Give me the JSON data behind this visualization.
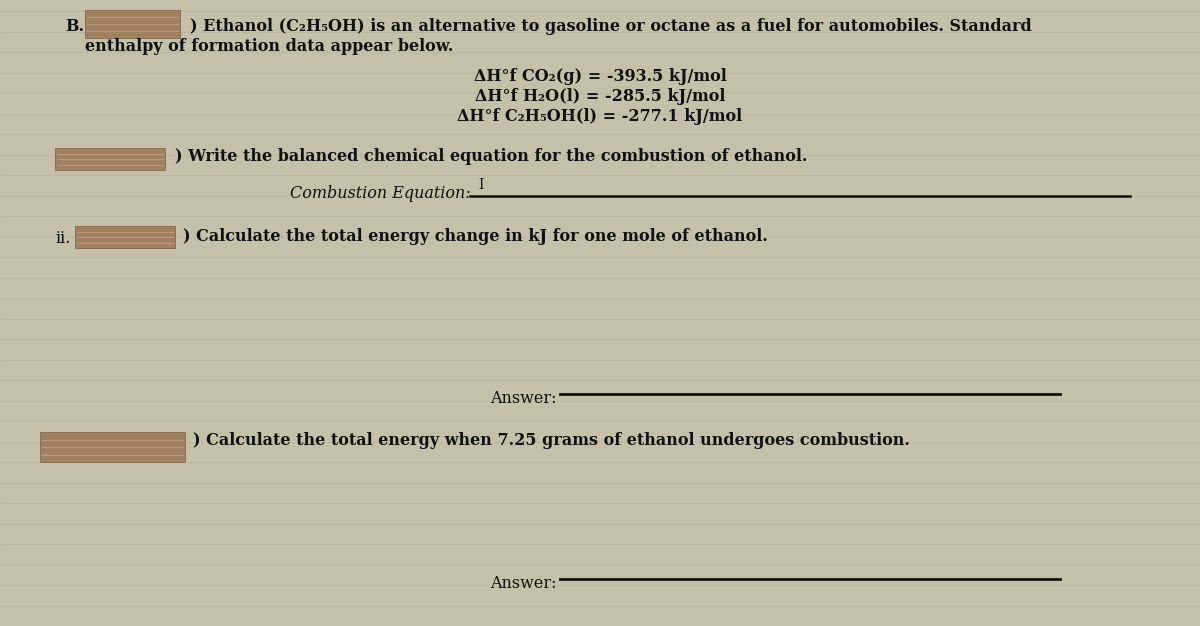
{
  "background_color": "#c4c0aa",
  "grid_line_color": "#b0ab97",
  "text_color": "#111111",
  "line_color": "#111111",
  "redact_color": "#a08060",
  "redact_edge": "#7a6040",
  "font_size": 11.5,
  "font_size_eq": 11.5,
  "B_label": "B.",
  "intro_text1": ") Ethanol (C₂H₅OH) is an alternative to gasoline or octane as a fuel for automobiles. Standard",
  "intro_text2": "enthalpy of formation data appear below.",
  "eq1": "ΔH°f CO₂(g) = -393.5 kJ/mol",
  "eq2": "ΔH°f H₂O(l) = -285.5 kJ/mol",
  "eq3": "ΔH°f C₂H₅OH(l) = -277.1 kJ/mol",
  "part_i_text": ") Write the balanced chemical equation for the combustion of ethanol.",
  "combustion_label": "Combustion Equation:",
  "part_ii_num": "ii.",
  "part_ii_text": ") Calculate the total energy change in kJ for one mole of ethanol.",
  "answer1": "Answer:",
  "part_iii_text": ") Calculate the total energy when 7.25 grams of ethanol undergoes combustion.",
  "answer2": "Answer:"
}
